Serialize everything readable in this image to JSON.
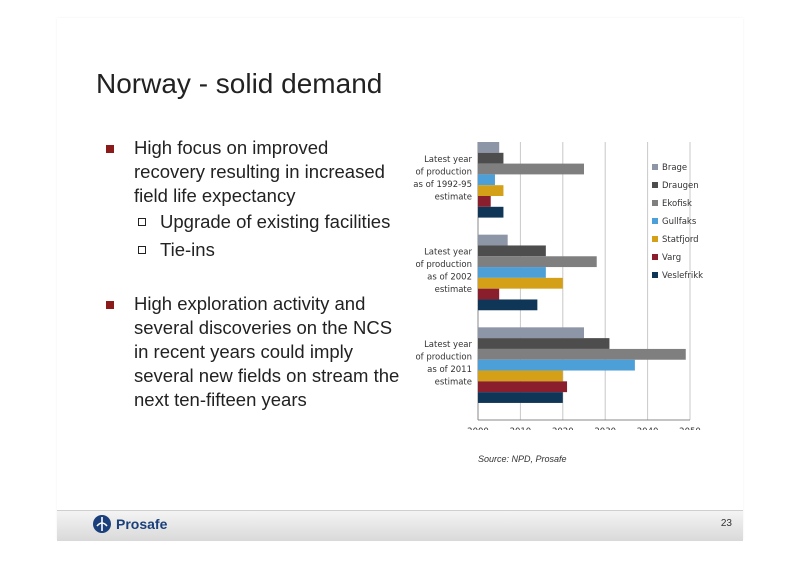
{
  "title": "Norway - solid demand",
  "bullets": [
    {
      "text": "High focus on improved recovery resulting in increased field life expectancy",
      "sub": [
        "Upgrade of existing facilities",
        "Tie-ins"
      ]
    },
    {
      "text": "High exploration activity and several discoveries on the NCS in recent years could imply several new fields on stream the next ten-fifteen years",
      "sub": []
    }
  ],
  "source": "Source: NPD, Prosafe",
  "footer": {
    "brand": "Prosafe",
    "page": "23"
  },
  "chart_data": {
    "type": "bar",
    "orientation": "horizontal",
    "categories": [
      "Latest year of production as of 1992-95 estimate",
      "Latest year of production as of 2002 estimate",
      "Latest year of production as of 2011 estimate"
    ],
    "xlim": [
      2000,
      2050
    ],
    "xticks": [
      2000,
      2010,
      2020,
      2030,
      2040,
      2050
    ],
    "grid": true,
    "legend_position": "right",
    "series": [
      {
        "name": "Brage",
        "color": "#8c96a6",
        "values": [
          2005,
          2007,
          2025
        ]
      },
      {
        "name": "Draugen",
        "color": "#4d4d4d",
        "values": [
          2006,
          2016,
          2031
        ]
      },
      {
        "name": "Ekofisk",
        "color": "#7f7f7f",
        "values": [
          2025,
          2028,
          2049
        ]
      },
      {
        "name": "Gullfaks",
        "color": "#4d9fd8",
        "values": [
          2004,
          2016,
          2037
        ]
      },
      {
        "name": "Statfjord",
        "color": "#d4a017",
        "values": [
          2006,
          2020,
          2020
        ]
      },
      {
        "name": "Varg",
        "color": "#8b1e2d",
        "values": [
          2003,
          2005,
          2021
        ]
      },
      {
        "name": "Veslefrikk",
        "color": "#0f3557",
        "values": [
          2006,
          2014,
          2020
        ]
      }
    ]
  }
}
